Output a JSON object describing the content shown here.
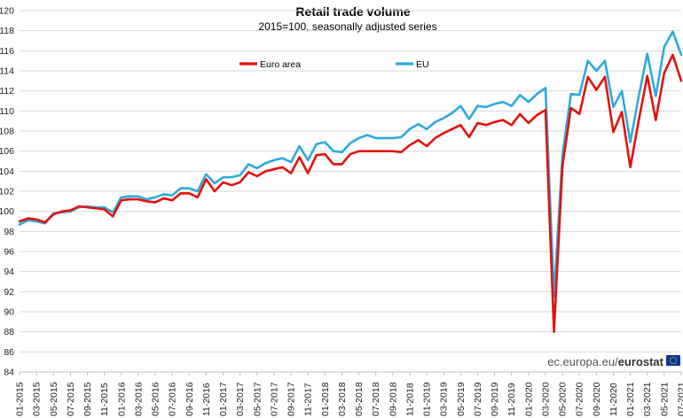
{
  "chart_data": {
    "type": "line",
    "title": "Retail trade volume",
    "subtitle": "2015=100, seasonally adjusted series",
    "ylim": [
      84,
      120
    ],
    "yticks": [
      84,
      86,
      88,
      90,
      92,
      94,
      96,
      98,
      100,
      102,
      104,
      106,
      108,
      110,
      112,
      114,
      116,
      118,
      120
    ],
    "grid": "horizontal",
    "legend_placement": "top",
    "x": [
      "01-2015",
      "02-2015",
      "03-2015",
      "04-2015",
      "05-2015",
      "06-2015",
      "07-2015",
      "08-2015",
      "09-2015",
      "10-2015",
      "11-2015",
      "12-2015",
      "01-2016",
      "02-2016",
      "03-2016",
      "04-2016",
      "05-2016",
      "06-2016",
      "07-2016",
      "08-2016",
      "09-2016",
      "10-2016",
      "11-2016",
      "12-2016",
      "01-2017",
      "02-2017",
      "03-2017",
      "04-2017",
      "05-2017",
      "06-2017",
      "07-2017",
      "08-2017",
      "09-2017",
      "10-2017",
      "11-2017",
      "12-2017",
      "01-2018",
      "02-2018",
      "03-2018",
      "04-2018",
      "05-2018",
      "06-2018",
      "07-2018",
      "08-2018",
      "09-2018",
      "10-2018",
      "11-2018",
      "12-2018",
      "01-2019",
      "02-2019",
      "03-2019",
      "04-2019",
      "05-2019",
      "06-2019",
      "07-2019",
      "08-2019",
      "09-2019",
      "10-2019",
      "11-2019",
      "12-2019",
      "01-2020",
      "02-2020",
      "03-2020",
      "04-2020",
      "05-2020",
      "06-2020",
      "07-2020",
      "08-2020",
      "09-2020",
      "10-2020",
      "11-2020",
      "12-2020",
      "01-2021",
      "02-2021",
      "03-2021",
      "04-2021",
      "05-2021",
      "06-2021",
      "07-2021"
    ],
    "xtick_labels": [
      "01-2015",
      "03-2015",
      "05-2015",
      "07-2015",
      "09-2015",
      "11-2015",
      "01-2016",
      "03-2016",
      "05-2016",
      "07-2016",
      "09-2016",
      "11-2016",
      "01-2017",
      "03-2017",
      "05-2017",
      "07-2017",
      "09-2017",
      "11-2017",
      "01-2018",
      "03-2018",
      "05-2018",
      "07-2018",
      "09-2018",
      "11-2018",
      "01-2019",
      "03-2019",
      "05-2019",
      "07-2019",
      "09-2019",
      "11-2019",
      "01-2020",
      "03-2020",
      "05-2020",
      "07-2020",
      "09-2020",
      "11-2020",
      "01-2021",
      "03-2021",
      "05-2021",
      "07-2021"
    ],
    "series": [
      {
        "name": "Euro area",
        "color": "#e3120b",
        "values": [
          99.0,
          99.3,
          99.2,
          98.9,
          99.7,
          100.0,
          100.1,
          100.5,
          100.4,
          100.3,
          100.2,
          99.5,
          101.1,
          101.2,
          101.2,
          101.0,
          100.9,
          101.3,
          101.1,
          101.8,
          101.8,
          101.4,
          103.2,
          102.0,
          102.9,
          102.6,
          102.9,
          103.9,
          103.5,
          104.0,
          104.2,
          104.4,
          103.8,
          105.4,
          103.8,
          105.6,
          105.7,
          104.7,
          104.7,
          105.7,
          106.0,
          106.0,
          106.0,
          106.0,
          106.0,
          105.9,
          106.6,
          107.1,
          106.5,
          107.3,
          107.8,
          108.2,
          108.6,
          107.4,
          108.8,
          108.6,
          108.9,
          109.1,
          108.6,
          109.7,
          108.8,
          109.6,
          110.1,
          88.0,
          104.5,
          110.3,
          109.7,
          113.4,
          112.1,
          113.4,
          107.9,
          109.9,
          104.4,
          109.1,
          113.5,
          109.1,
          113.8,
          115.6,
          113.0
        ]
      },
      {
        "name": "EU",
        "color": "#2eaadc",
        "values": [
          98.7,
          99.1,
          99.0,
          98.8,
          99.8,
          99.9,
          100.0,
          100.4,
          100.5,
          100.4,
          100.4,
          99.9,
          101.4,
          101.5,
          101.5,
          101.2,
          101.4,
          101.7,
          101.6,
          102.3,
          102.3,
          102.0,
          103.7,
          102.8,
          103.4,
          103.4,
          103.6,
          104.7,
          104.3,
          104.8,
          105.1,
          105.3,
          104.9,
          106.5,
          105.1,
          106.7,
          106.9,
          106.0,
          105.9,
          106.8,
          107.3,
          107.6,
          107.3,
          107.3,
          107.3,
          107.4,
          108.2,
          108.7,
          108.2,
          108.9,
          109.3,
          109.8,
          110.5,
          109.2,
          110.5,
          110.4,
          110.7,
          110.9,
          110.5,
          111.6,
          110.9,
          111.7,
          112.3,
          91.5,
          105.6,
          111.7,
          111.6,
          115.0,
          114.0,
          115.0,
          110.4,
          112.0,
          106.9,
          111.5,
          115.7,
          111.5,
          116.4,
          117.9,
          115.6
        ]
      }
    ]
  },
  "source": {
    "domain_text": "ec.europa.eu/",
    "brand_text": "eurostat",
    "flag_color": "#003399",
    "flag_star_color": "#ffcc00"
  }
}
